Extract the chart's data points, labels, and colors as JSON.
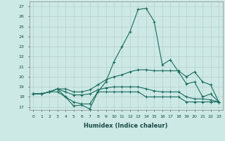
{
  "xlabel": "Humidex (Indice chaleur)",
  "background_color": "#cce9e5",
  "grid_color": "#b8cece",
  "line_color": "#1a6b5e",
  "xlim": [
    -0.5,
    23.5
  ],
  "ylim": [
    16.7,
    27.5
  ],
  "yticks": [
    17,
    18,
    19,
    20,
    21,
    22,
    23,
    24,
    25,
    26,
    27
  ],
  "xticks": [
    0,
    1,
    2,
    3,
    4,
    5,
    6,
    7,
    8,
    9,
    10,
    11,
    12,
    13,
    14,
    15,
    16,
    17,
    18,
    19,
    20,
    21,
    22,
    23
  ],
  "line1_y": [
    18.3,
    18.3,
    18.5,
    18.5,
    18.0,
    17.1,
    17.2,
    16.8,
    18.5,
    19.5,
    21.5,
    23.0,
    24.5,
    26.7,
    26.8,
    25.5,
    21.2,
    21.7,
    20.5,
    19.3,
    19.5,
    18.0,
    18.3,
    17.5
  ],
  "line2_y": [
    18.3,
    18.3,
    18.5,
    18.8,
    18.8,
    18.5,
    18.5,
    18.7,
    19.2,
    19.7,
    20.0,
    20.2,
    20.5,
    20.7,
    20.7,
    20.6,
    20.6,
    20.6,
    20.6,
    20.0,
    20.5,
    19.5,
    19.2,
    17.5
  ],
  "line3_y": [
    18.3,
    18.3,
    18.5,
    18.8,
    18.5,
    18.2,
    18.2,
    18.3,
    18.7,
    18.9,
    19.0,
    19.0,
    19.0,
    19.0,
    18.8,
    18.6,
    18.5,
    18.5,
    18.5,
    18.0,
    17.8,
    17.8,
    17.7,
    17.5
  ],
  "line4_y": [
    18.3,
    18.3,
    18.5,
    18.8,
    18.0,
    17.5,
    17.3,
    17.3,
    18.5,
    18.5,
    18.5,
    18.5,
    18.5,
    18.5,
    18.0,
    18.0,
    18.0,
    18.0,
    18.0,
    17.5,
    17.5,
    17.5,
    17.5,
    17.5
  ]
}
